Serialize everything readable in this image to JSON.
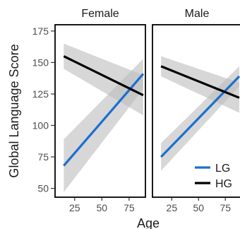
{
  "chart_data": {
    "type": "line",
    "ylabel": "Global Language Score",
    "xlabel": "Age",
    "xlim": [
      7,
      90
    ],
    "ylim": [
      43,
      180
    ],
    "x_ticks": [
      25,
      50,
      75
    ],
    "y_ticks": [
      50,
      75,
      100,
      125,
      150,
      175
    ],
    "grid": false,
    "legend_position": "bottom-right",
    "legend": [
      {
        "label": "LG",
        "color": "#1a6fd1"
      },
      {
        "label": "HG",
        "color": "#000000"
      }
    ],
    "band_color": "#bdbdbd",
    "panels": [
      {
        "facet": "Female",
        "series": [
          {
            "name": "LG",
            "color": "#1a6fd1",
            "x": [
              15,
              88
            ],
            "y": [
              68,
              141
            ],
            "ci_lower": [
              47,
              129
            ],
            "ci_upper": [
              89,
              153
            ]
          },
          {
            "name": "HG",
            "color": "#000000",
            "x": [
              15,
              88
            ],
            "y": [
              155,
              124
            ],
            "ci_lower": [
              145,
              108
            ],
            "ci_upper": [
              165,
              140
            ]
          }
        ]
      },
      {
        "facet": "Male",
        "series": [
          {
            "name": "LG",
            "color": "#1a6fd1",
            "x": [
              15,
              88
            ],
            "y": [
              75,
              139
            ],
            "ci_lower": [
              64,
              131
            ],
            "ci_upper": [
              86,
              147
            ]
          },
          {
            "name": "HG",
            "color": "#000000",
            "x": [
              15,
              88
            ],
            "y": [
              147,
              122
            ],
            "ci_lower": [
              139,
              110
            ],
            "ci_upper": [
              155,
              134
            ]
          }
        ]
      }
    ]
  }
}
